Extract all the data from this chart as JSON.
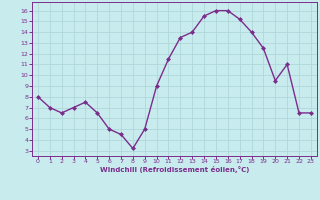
{
  "x": [
    0,
    1,
    2,
    3,
    4,
    5,
    6,
    7,
    8,
    9,
    10,
    11,
    12,
    13,
    14,
    15,
    16,
    17,
    18,
    19,
    20,
    21,
    22,
    23
  ],
  "y": [
    8,
    7,
    6.5,
    7,
    7.5,
    6.5,
    5,
    4.5,
    3.2,
    5,
    9,
    11.5,
    13.5,
    14,
    15.5,
    16,
    16,
    15.2,
    14,
    12.5,
    9.5,
    11,
    6.5,
    6.5
  ],
  "line_color": "#7b2d8b",
  "marker": "D",
  "marker_size": 2,
  "line_width": 1.0,
  "bg_color": "#c8ecee",
  "grid_color": "#b0d8dc",
  "xlabel": "Windchill (Refroidissement éolien,°C)",
  "xlabel_color": "#7b2d8b",
  "tick_color": "#7b2d8b",
  "yticks": [
    3,
    4,
    5,
    6,
    7,
    8,
    9,
    10,
    11,
    12,
    13,
    14,
    15,
    16
  ],
  "xticks": [
    0,
    1,
    2,
    3,
    4,
    5,
    6,
    7,
    8,
    9,
    10,
    11,
    12,
    13,
    14,
    15,
    16,
    17,
    18,
    19,
    20,
    21,
    22,
    23
  ],
  "ylim": [
    2.5,
    16.8
  ],
  "xlim": [
    -0.5,
    23.5
  ]
}
